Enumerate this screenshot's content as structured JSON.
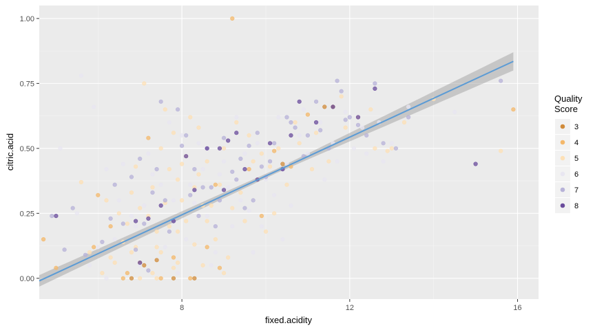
{
  "chart_data": {
    "type": "scatter",
    "title": "",
    "xlabel": "fixed.acidity",
    "ylabel": "citric.acid",
    "xlim": [
      4.6,
      16.5
    ],
    "ylim": [
      -0.08,
      1.05
    ],
    "xticks": [
      8,
      12,
      16
    ],
    "xtick_labels": [
      "8",
      "12",
      "16"
    ],
    "yticks": [
      0.0,
      0.25,
      0.5,
      0.75,
      1.0
    ],
    "ytick_labels": [
      "0.00",
      "0.25",
      "0.50",
      "0.75",
      "1.00"
    ],
    "grid": true,
    "legend": {
      "title_lines": [
        "Quality",
        "Score"
      ],
      "placement": "right",
      "entries": [
        {
          "label": "3",
          "color": "#d08b3a"
        },
        {
          "label": "4",
          "color": "#f4b86a"
        },
        {
          "label": "5",
          "color": "#fde0b6"
        },
        {
          "label": "6",
          "color": "#e8e6f1"
        },
        {
          "label": "7",
          "color": "#b7b2d8"
        },
        {
          "label": "8",
          "color": "#6a4c9c"
        }
      ]
    },
    "trend": {
      "method": "lm",
      "x": [
        4.6,
        15.9
      ],
      "y": [
        -0.01,
        0.835
      ],
      "se_band_halfwidth": [
        0.022,
        0.008,
        0.035
      ],
      "color": "#5b9bd5"
    },
    "series": [
      {
        "name": "3",
        "color": "#d08b3a",
        "points": [
          [
            7.1,
            0.05
          ],
          [
            7.8,
            0.0
          ],
          [
            8.3,
            0.0
          ],
          [
            10.4,
            0.44
          ],
          [
            11.6,
            0.66
          ],
          [
            6.8,
            0.0
          ],
          [
            7.4,
            0.07
          ],
          [
            11.4,
            0.66
          ]
        ]
      },
      {
        "name": "4",
        "color": "#f4b86a",
        "points": [
          [
            4.7,
            0.15
          ],
          [
            5.0,
            0.04
          ],
          [
            6.0,
            0.32
          ],
          [
            6.6,
            0.0
          ],
          [
            7.2,
            0.54
          ],
          [
            8.2,
            0.0
          ],
          [
            9.2,
            1.0
          ],
          [
            10.2,
            0.49
          ],
          [
            11.0,
            0.63
          ],
          [
            15.9,
            0.65
          ],
          [
            7.8,
            0.08
          ],
          [
            7.0,
            0.06
          ],
          [
            9.9,
            0.24
          ],
          [
            6.7,
            0.02
          ],
          [
            5.9,
            0.12
          ],
          [
            8.6,
            0.12
          ],
          [
            8.9,
            0.04
          ],
          [
            9.6,
            0.42
          ],
          [
            7.5,
            0.0
          ],
          [
            6.3,
            0.2
          ],
          [
            8.8,
            0.36
          ],
          [
            10.6,
            0.43
          ]
        ]
      },
      {
        "name": "5",
        "color": "#fde0b6",
        "points": [
          [
            7.4,
            0.0
          ],
          [
            7.8,
            0.04
          ],
          [
            7.8,
            0.56
          ],
          [
            11.2,
            0.56
          ],
          [
            7.9,
            0.06
          ],
          [
            8.9,
            0.36
          ],
          [
            7.6,
            0.29
          ],
          [
            7.9,
            0.18
          ],
          [
            8.5,
            0.28
          ],
          [
            8.1,
            0.22
          ],
          [
            7.4,
            0.18
          ],
          [
            8.6,
            0.22
          ],
          [
            7.5,
            0.1
          ],
          [
            8.3,
            0.35
          ],
          [
            6.7,
            0.21
          ],
          [
            7.5,
            0.5
          ],
          [
            8.0,
            0.44
          ],
          [
            10.1,
            0.43
          ],
          [
            12.6,
            0.5
          ],
          [
            13.0,
            0.5
          ],
          [
            15.6,
            0.49
          ],
          [
            9.3,
            0.6
          ],
          [
            7.1,
            0.75
          ],
          [
            6.4,
            0.06
          ],
          [
            9.0,
            0.02
          ],
          [
            6.9,
            0.12
          ],
          [
            6.8,
            0.1
          ],
          [
            8.4,
            0.4
          ],
          [
            9.7,
            0.45
          ],
          [
            10.3,
            0.5
          ],
          [
            8.7,
            0.28
          ],
          [
            7.3,
            0.35
          ],
          [
            6.5,
            0.25
          ],
          [
            5.8,
            0.1
          ],
          [
            6.2,
            0.3
          ],
          [
            9.9,
            0.48
          ],
          [
            10.8,
            0.52
          ],
          [
            11.5,
            0.45
          ],
          [
            8.2,
            0.62
          ],
          [
            9.4,
            0.33
          ],
          [
            7.0,
            0.0
          ],
          [
            7.7,
            0.42
          ],
          [
            8.8,
            0.15
          ],
          [
            9.1,
            0.08
          ],
          [
            6.6,
            0.14
          ],
          [
            7.2,
            0.24
          ],
          [
            8.0,
            0.3
          ],
          [
            9.5,
            0.22
          ],
          [
            10.5,
            0.36
          ],
          [
            11.8,
            0.7
          ],
          [
            12.2,
            0.62
          ],
          [
            6.1,
            0.02
          ],
          [
            5.6,
            0.37
          ],
          [
            7.6,
            0.65
          ],
          [
            8.4,
            0.58
          ],
          [
            9.8,
            0.38
          ],
          [
            10.0,
            0.18
          ],
          [
            6.9,
            0.43
          ],
          [
            7.3,
            0.02
          ],
          [
            8.5,
            0.05
          ],
          [
            9.2,
            0.27
          ],
          [
            10.7,
            0.6
          ],
          [
            11.1,
            0.42
          ],
          [
            12.9,
            0.49
          ],
          [
            7.9,
            0.38
          ],
          [
            8.1,
            0.47
          ],
          [
            6.3,
            0.08
          ],
          [
            7.0,
            0.27
          ],
          [
            9.6,
            0.55
          ],
          [
            10.2,
            0.25
          ],
          [
            8.6,
            0.45
          ],
          [
            7.4,
            0.12
          ],
          [
            6.8,
            0.33
          ],
          [
            9.0,
            0.5
          ],
          [
            11.9,
            0.58
          ],
          [
            13.3,
            0.6
          ],
          [
            14.0,
            0.69
          ],
          [
            12.5,
            0.65
          ],
          [
            8.3,
            0.13
          ],
          [
            7.7,
            0.2
          ]
        ]
      },
      {
        "name": "6",
        "color": "#e8e6f1",
        "points": [
          [
            5.1,
            0.5
          ],
          [
            5.6,
            0.78
          ],
          [
            5.9,
            0.66
          ],
          [
            6.2,
            0.42
          ],
          [
            6.9,
            0.2
          ],
          [
            7.3,
            0.4
          ],
          [
            7.8,
            0.3
          ],
          [
            8.1,
            0.15
          ],
          [
            8.6,
            0.24
          ],
          [
            9.0,
            0.45
          ],
          [
            9.4,
            0.3
          ],
          [
            9.8,
            0.52
          ],
          [
            10.3,
            0.62
          ],
          [
            10.8,
            0.55
          ],
          [
            11.3,
            0.6
          ],
          [
            11.9,
            0.64
          ],
          [
            12.3,
            0.58
          ],
          [
            12.8,
            0.45
          ],
          [
            13.4,
            0.66
          ],
          [
            14.5,
            0.64
          ],
          [
            7.0,
            0.05
          ],
          [
            7.6,
            0.12
          ],
          [
            8.2,
            0.36
          ],
          [
            8.8,
            0.1
          ],
          [
            9.2,
            0.2
          ],
          [
            6.5,
            0.3
          ],
          [
            6.0,
            0.12
          ],
          [
            10.0,
            0.38
          ],
          [
            10.5,
            0.44
          ],
          [
            11.0,
            0.48
          ],
          [
            7.2,
            0.48
          ],
          [
            8.4,
            0.52
          ],
          [
            9.6,
            0.26
          ],
          [
            6.6,
            0.44
          ],
          [
            7.9,
            0.02
          ],
          [
            9.3,
            0.62
          ],
          [
            10.6,
            0.28
          ],
          [
            11.6,
            0.52
          ],
          [
            12.1,
            0.5
          ],
          [
            12.7,
            0.6
          ],
          [
            13.0,
            0.52
          ],
          [
            8.9,
            0.4
          ],
          [
            7.5,
            0.36
          ],
          [
            6.4,
            0.15
          ],
          [
            5.5,
            0.25
          ],
          [
            8.0,
            0.55
          ],
          [
            9.1,
            0.35
          ],
          [
            10.2,
            0.32
          ],
          [
            11.4,
            0.38
          ],
          [
            7.1,
            0.28
          ],
          [
            8.7,
            0.05
          ],
          [
            9.9,
            0.2
          ],
          [
            6.8,
            0.24
          ],
          [
            8.5,
            0.42
          ],
          [
            9.5,
            0.48
          ],
          [
            10.9,
            0.65
          ],
          [
            11.7,
            0.45
          ],
          [
            12.4,
            0.48
          ],
          [
            7.7,
            0.6
          ],
          [
            6.2,
            0.0
          ],
          [
            5.8,
            0.05
          ],
          [
            8.3,
            0.29
          ],
          [
            9.7,
            0.1
          ],
          [
            10.4,
            0.15
          ]
        ]
      },
      {
        "name": "7",
        "color": "#b7b2d8",
        "points": [
          [
            4.9,
            0.24
          ],
          [
            5.2,
            0.11
          ],
          [
            5.4,
            0.27
          ],
          [
            6.3,
            0.23
          ],
          [
            6.8,
            0.39
          ],
          [
            7.3,
            0.33
          ],
          [
            7.5,
            0.68
          ],
          [
            7.9,
            0.65
          ],
          [
            8.0,
            0.51
          ],
          [
            8.3,
            0.42
          ],
          [
            8.7,
            0.35
          ],
          [
            9.2,
            0.41
          ],
          [
            9.6,
            0.51
          ],
          [
            9.8,
            0.56
          ],
          [
            10.2,
            0.52
          ],
          [
            10.5,
            0.62
          ],
          [
            10.9,
            0.47
          ],
          [
            11.2,
            0.68
          ],
          [
            11.5,
            0.5
          ],
          [
            11.9,
            0.61
          ],
          [
            12.4,
            0.55
          ],
          [
            12.8,
            0.52
          ],
          [
            13.1,
            0.5
          ],
          [
            13.4,
            0.62
          ],
          [
            15.6,
            0.76
          ],
          [
            7.1,
            0.21
          ],
          [
            7.6,
            0.3
          ],
          [
            8.4,
            0.24
          ],
          [
            8.9,
            0.3
          ],
          [
            9.5,
            0.27
          ],
          [
            10.0,
            0.39
          ],
          [
            6.1,
            0.14
          ],
          [
            6.6,
            0.21
          ],
          [
            7.8,
            0.22
          ],
          [
            8.6,
            0.5
          ],
          [
            9.0,
            0.54
          ],
          [
            9.9,
            0.43
          ],
          [
            10.7,
            0.58
          ],
          [
            11.7,
            0.76
          ],
          [
            12.2,
            0.59
          ],
          [
            12.6,
            0.75
          ],
          [
            8.2,
            0.32
          ],
          [
            7.4,
            0.42
          ],
          [
            6.9,
            0.11
          ],
          [
            8.8,
            0.2
          ],
          [
            9.3,
            0.38
          ],
          [
            10.4,
            0.42
          ],
          [
            11.0,
            0.55
          ],
          [
            5.7,
            0.09
          ],
          [
            7.0,
            0.46
          ],
          [
            7.7,
            0.18
          ],
          [
            8.1,
            0.55
          ],
          [
            9.7,
            0.3
          ],
          [
            10.1,
            0.45
          ],
          [
            11.3,
            0.57
          ],
          [
            12.0,
            0.62
          ],
          [
            6.4,
            0.36
          ],
          [
            7.2,
            0.03
          ],
          [
            8.5,
            0.35
          ],
          [
            9.4,
            0.46
          ],
          [
            10.6,
            0.6
          ],
          [
            11.8,
            0.72
          ]
        ]
      },
      {
        "name": "8",
        "color": "#6a4c9c",
        "points": [
          [
            5.0,
            0.24
          ],
          [
            7.2,
            0.23
          ],
          [
            7.8,
            0.22
          ],
          [
            8.6,
            0.5
          ],
          [
            9.1,
            0.53
          ],
          [
            9.3,
            0.56
          ],
          [
            10.4,
            0.42
          ],
          [
            10.6,
            0.55
          ],
          [
            11.6,
            0.66
          ],
          [
            12.6,
            0.73
          ],
          [
            15.0,
            0.44
          ],
          [
            8.3,
            0.34
          ],
          [
            9.8,
            0.38
          ],
          [
            7.5,
            0.28
          ],
          [
            10.8,
            0.68
          ],
          [
            12.2,
            0.62
          ],
          [
            8.9,
            0.5
          ],
          [
            7.0,
            0.06
          ],
          [
            9.5,
            0.42
          ],
          [
            11.2,
            0.6
          ],
          [
            8.1,
            0.47
          ],
          [
            10.1,
            0.52
          ],
          [
            6.9,
            0.22
          ],
          [
            9.0,
            0.34
          ]
        ]
      }
    ]
  }
}
